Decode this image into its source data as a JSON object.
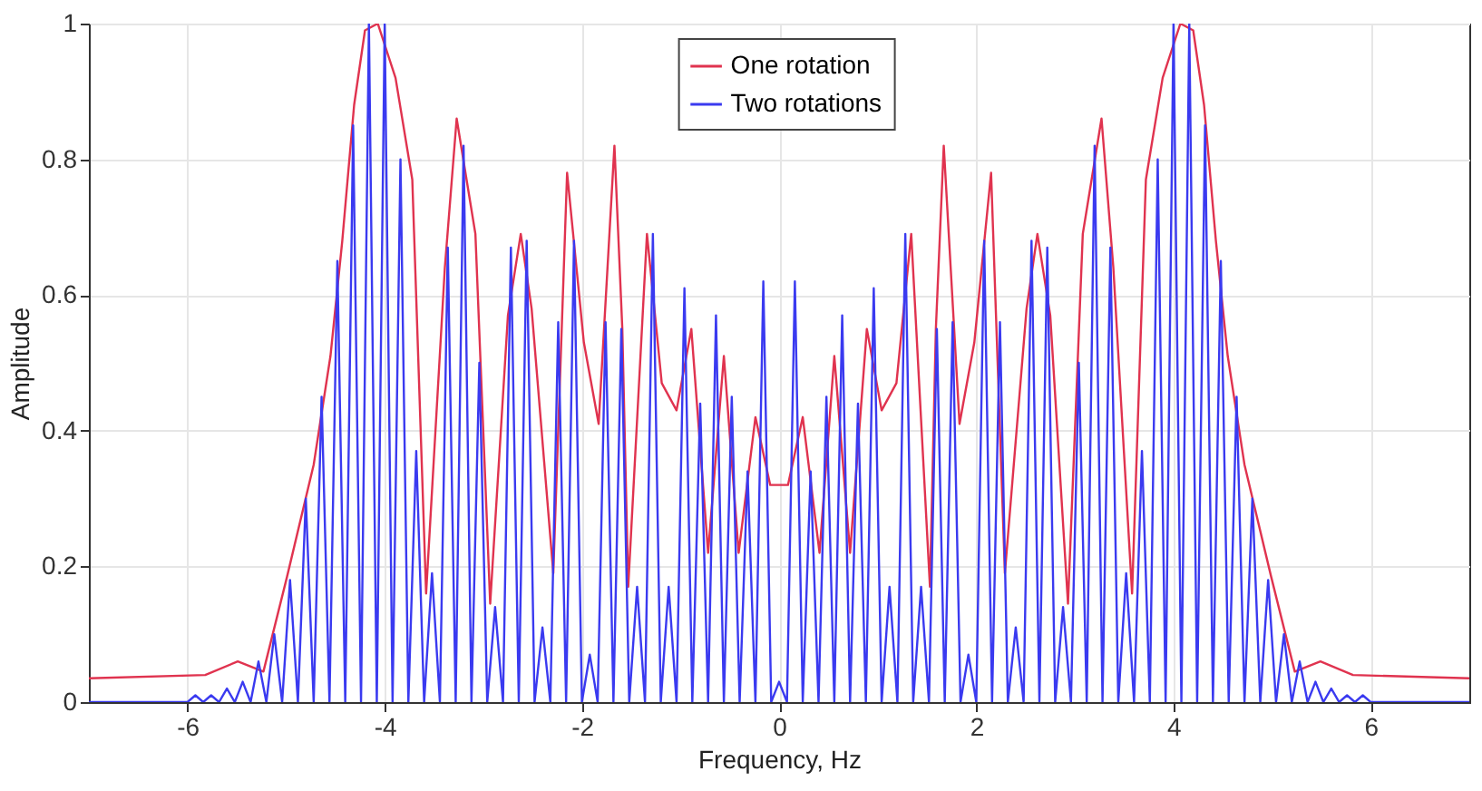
{
  "chart_data": {
    "type": "line",
    "xlabel": "Frequency, Hz",
    "ylabel": "Amplitude",
    "xlim": [
      -7,
      7
    ],
    "xticks": [
      -6,
      -4,
      -2,
      0,
      2,
      4,
      6
    ],
    "ylim": [
      0,
      1
    ],
    "yticks": [
      0,
      0.2,
      0.4,
      0.6,
      0.8,
      1
    ],
    "grid": true,
    "legend": "top",
    "series": [
      {
        "name": "One rotation",
        "color": "#e0334f",
        "x": [
          -7,
          -5.82,
          -5.49,
          -5.23,
          -4.99,
          -4.72,
          -4.55,
          -4.43,
          -4.31,
          -4.2,
          -4.07,
          -3.89,
          -3.72,
          -3.58,
          -3.39,
          -3.27,
          -3.08,
          -2.93,
          -2.75,
          -2.62,
          -2.51,
          -2.29,
          -2.15,
          -1.98,
          -1.83,
          -1.67,
          -1.59,
          -1.53,
          -1.34,
          -1.19,
          -1.04,
          -0.89,
          -0.72,
          -0.56,
          -0.41,
          -0.24,
          -0.09,
          0.09,
          0.24,
          0.41,
          0.56,
          0.72,
          0.89,
          1.04,
          1.19,
          1.34,
          1.53,
          1.59,
          1.67,
          1.83,
          1.98,
          2.15,
          2.29,
          2.51,
          2.62,
          2.75,
          2.93,
          3.08,
          3.27,
          3.39,
          3.58,
          3.72,
          3.89,
          4.07,
          4.2,
          4.31,
          4.43,
          4.55,
          4.72,
          4.99,
          5.23,
          5.49,
          5.82,
          7
        ],
        "values": [
          0.035,
          0.04,
          0.06,
          0.045,
          0.185,
          0.35,
          0.51,
          0.68,
          0.88,
          0.99,
          1,
          0.92,
          0.77,
          0.16,
          0.64,
          0.86,
          0.69,
          0.145,
          0.57,
          0.69,
          0.58,
          0.19,
          0.78,
          0.53,
          0.41,
          0.82,
          0.55,
          0.17,
          0.69,
          0.47,
          0.43,
          0.55,
          0.22,
          0.51,
          0.22,
          0.42,
          0.32,
          0.32,
          0.42,
          0.22,
          0.51,
          0.22,
          0.55,
          0.43,
          0.47,
          0.69,
          0.17,
          0.55,
          0.82,
          0.41,
          0.53,
          0.78,
          0.19,
          0.58,
          0.69,
          0.57,
          0.145,
          0.69,
          0.86,
          0.64,
          0.16,
          0.77,
          0.92,
          1,
          0.99,
          0.88,
          0.68,
          0.51,
          0.35,
          0.185,
          0.045,
          0.06,
          0.04,
          0.035
        ]
      },
      {
        "name": "Two rotations",
        "color": "#3a3af0",
        "x": [
          -7,
          -6,
          -5.92,
          -5.84,
          -5.76,
          -5.68,
          -5.6,
          -5.52,
          -5.44,
          -5.36,
          -5.28,
          -5.2,
          -5.12,
          -5.04,
          -4.96,
          -4.88,
          -4.8,
          -4.72,
          -4.64,
          -4.56,
          -4.48,
          -4.4,
          -4.32,
          -4.24,
          -4.16,
          -4.08,
          -4,
          -3.92,
          -3.84,
          -3.76,
          -3.68,
          -3.6,
          -3.52,
          -3.44,
          -3.36,
          -3.28,
          -3.2,
          -3.12,
          -3.04,
          -2.96,
          -2.88,
          -2.8,
          -2.72,
          -2.64,
          -2.56,
          -2.48,
          -2.4,
          -2.32,
          -2.24,
          -2.16,
          -2.08,
          -2,
          -1.92,
          -1.84,
          -1.76,
          -1.68,
          -1.6,
          -1.52,
          -1.44,
          -1.36,
          -1.28,
          -1.2,
          -1.12,
          -1.04,
          -0.96,
          -0.88,
          -0.8,
          -0.72,
          -0.64,
          -0.56,
          -0.48,
          -0.4,
          -0.32,
          -0.24,
          -0.16,
          -0.08,
          0,
          0.08,
          0.16,
          0.24,
          0.32,
          0.4,
          0.48,
          0.56,
          0.64,
          0.72,
          0.8,
          0.88,
          0.96,
          1.04,
          1.12,
          1.2,
          1.28,
          1.36,
          1.44,
          1.52,
          1.6,
          1.68,
          1.76,
          1.84,
          1.92,
          2,
          2.08,
          2.16,
          2.24,
          2.32,
          2.4,
          2.48,
          2.56,
          2.64,
          2.72,
          2.8,
          2.88,
          2.96,
          3.04,
          3.12,
          3.2,
          3.28,
          3.36,
          3.44,
          3.52,
          3.6,
          3.68,
          3.76,
          3.84,
          3.92,
          4,
          4.08,
          4.16,
          4.24,
          4.32,
          4.4,
          4.48,
          4.56,
          4.64,
          4.72,
          4.8,
          4.88,
          4.96,
          5.04,
          5.12,
          5.2,
          5.28,
          5.36,
          5.44,
          5.52,
          5.6,
          5.68,
          5.76,
          5.84,
          5.92,
          6,
          7
        ],
        "values": [
          0,
          0,
          0.01,
          0,
          0.01,
          0,
          0.02,
          0,
          0.03,
          0,
          0.06,
          0,
          0.1,
          0,
          0.18,
          0,
          0.3,
          0,
          0.45,
          0,
          0.65,
          0,
          0.85,
          0,
          1,
          0,
          1,
          0,
          0.8,
          0,
          0.37,
          0,
          0.19,
          0,
          0.67,
          0,
          0.82,
          0,
          0.5,
          0,
          0.14,
          0,
          0.67,
          0,
          0.68,
          0,
          0.11,
          0,
          0.56,
          0,
          0.68,
          0,
          0.07,
          0,
          0.56,
          0,
          0.55,
          0,
          0.17,
          0,
          0.69,
          0,
          0.17,
          0,
          0.61,
          0,
          0.44,
          0,
          0.57,
          0,
          0.45,
          0,
          0.34,
          0,
          0.62,
          0,
          0.03,
          0,
          0.62,
          0,
          0.34,
          0,
          0.45,
          0,
          0.57,
          0,
          0.44,
          0,
          0.61,
          0,
          0.17,
          0,
          0.69,
          0,
          0.17,
          0,
          0.55,
          0,
          0.56,
          0,
          0.07,
          0,
          0.68,
          0,
          0.56,
          0,
          0.11,
          0,
          0.68,
          0,
          0.67,
          0,
          0.14,
          0,
          0.5,
          0,
          0.82,
          0,
          0.67,
          0,
          0.19,
          0,
          0.37,
          0,
          0.8,
          0,
          1,
          0,
          1,
          0,
          0.85,
          0,
          0.65,
          0,
          0.45,
          0,
          0.3,
          0,
          0.18,
          0,
          0.1,
          0,
          0.06,
          0,
          0.03,
          0,
          0.02,
          0,
          0.01,
          0,
          0.01,
          0,
          0
        ]
      }
    ]
  }
}
